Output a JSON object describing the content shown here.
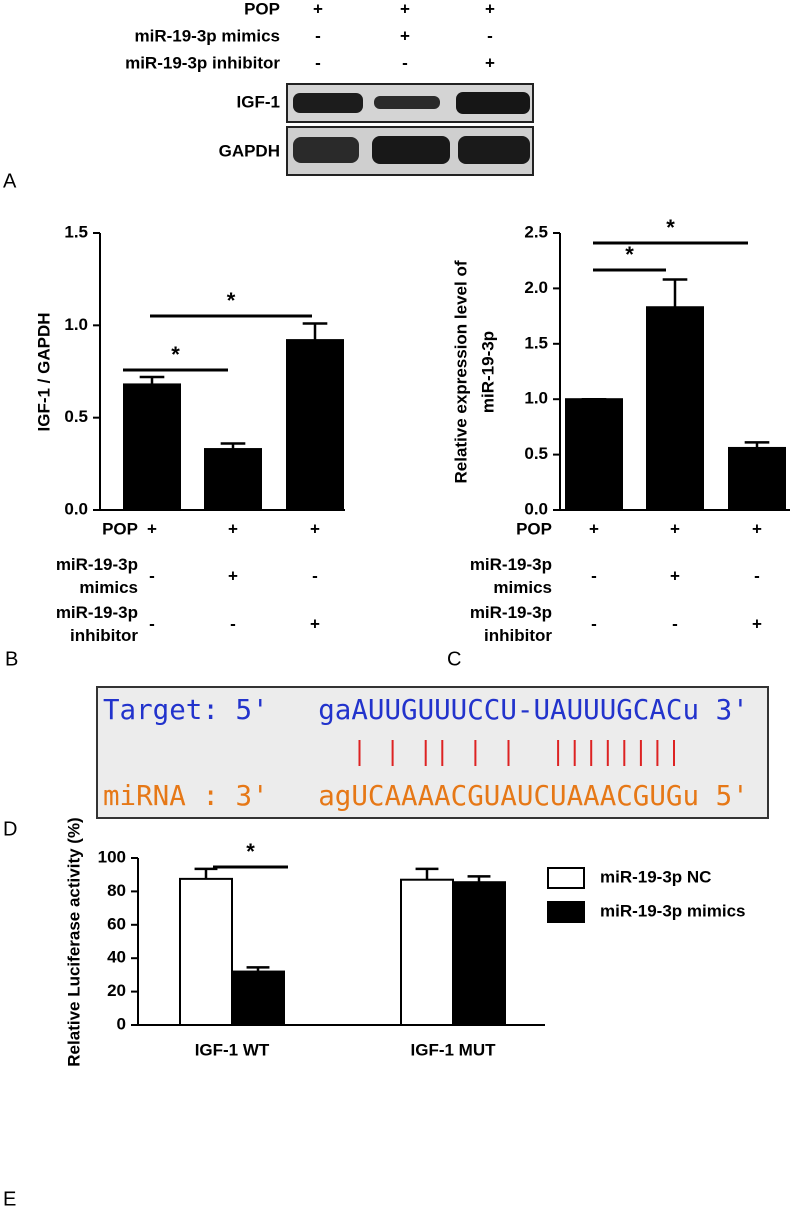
{
  "panel_a": {
    "label": "A",
    "rows": [
      {
        "label": "POP",
        "signs": [
          "+",
          "+",
          "+"
        ]
      },
      {
        "label": "miR-19-3p mimics",
        "signs": [
          "-",
          "+",
          "-"
        ]
      },
      {
        "label": "miR-19-3p inhibitor",
        "signs": [
          "-",
          "-",
          "+"
        ]
      }
    ],
    "blots": [
      "IGF-1",
      "GAPDH"
    ]
  },
  "panel_d": {
    "label": "D",
    "target": "Target: 5'   gaAUUGUUUCCU-UAUUUGCACu 3'",
    "mirna": "miRNA : 3'   agUCAAAACGUAUCUAAACGUGu 5'"
  },
  "chart_data": [
    {
      "type": "bar",
      "panel_label": "B",
      "y_label": [
        "IGF-1 / GAPDH"
      ],
      "values": [
        0.68,
        0.33,
        0.92
      ],
      "errors": [
        0.04,
        0.03,
        0.09
      ],
      "color": "#000000",
      "ylim": [
        0,
        1.5
      ],
      "yticks": [
        {
          "value": 0,
          "label": "0.0"
        },
        {
          "value": 0.5,
          "label": "0.5"
        },
        {
          "value": 1,
          "label": "1.0"
        },
        {
          "value": 1.5,
          "label": "1.5"
        }
      ],
      "significance": [
        "*",
        "*"
      ],
      "treatments": [
        {
          "label": [
            "POP"
          ],
          "signs": [
            "+",
            "+",
            "+"
          ]
        },
        {
          "label": [
            "miR-19-3p",
            "mimics"
          ],
          "signs": [
            "-",
            "+",
            "-"
          ]
        },
        {
          "label": [
            "miR-19-3p",
            "inhibitor"
          ],
          "signs": [
            "-",
            "-",
            "+"
          ]
        }
      ]
    },
    {
      "type": "bar",
      "panel_label": "C",
      "y_label": [
        "Relative expression level  of",
        "miR-19-3p"
      ],
      "values": [
        1.0,
        1.83,
        0.56
      ],
      "errors": [
        0,
        0.25,
        0.05
      ],
      "color": "#000000",
      "ylim": [
        0,
        2.5
      ],
      "yticks": [
        {
          "value": 0,
          "label": "0.0"
        },
        {
          "value": 0.5,
          "label": "0.5"
        },
        {
          "value": 1,
          "label": "1.0"
        },
        {
          "value": 1.5,
          "label": "1.5"
        },
        {
          "value": 2,
          "label": "2.0"
        },
        {
          "value": 2.5,
          "label": "2.5"
        }
      ],
      "significance": [
        "*",
        "*"
      ],
      "treatments": [
        {
          "label": [
            "POP"
          ],
          "signs": [
            "+",
            "+",
            "+"
          ]
        },
        {
          "label": [
            "miR-19-3p",
            "mimics"
          ],
          "signs": [
            "-",
            "+",
            "-"
          ]
        },
        {
          "label": [
            "miR-19-3p",
            "inhibitor"
          ],
          "signs": [
            "-",
            "-",
            "+"
          ]
        }
      ]
    },
    {
      "type": "grouped-bar",
      "panel_label": "E",
      "y_label": [
        "Relative Luciferase activity (%)"
      ],
      "categories": [
        "IGF-1 WT",
        "IGF-1 MUT"
      ],
      "series": [
        {
          "name": "miR-19-3p NC",
          "color": "#ffffff",
          "values": [
            87.5,
            87
          ],
          "errors": [
            6,
            6.5
          ]
        },
        {
          "name": "miR-19-3p mimics",
          "color": "#000000",
          "values": [
            32,
            85.5
          ],
          "errors": [
            2.5,
            3.5
          ]
        }
      ],
      "ylim": [
        0,
        100
      ],
      "yticks": [
        0,
        20,
        40,
        60,
        80,
        100
      ],
      "significance": [
        "*"
      ],
      "legend": "right"
    }
  ]
}
